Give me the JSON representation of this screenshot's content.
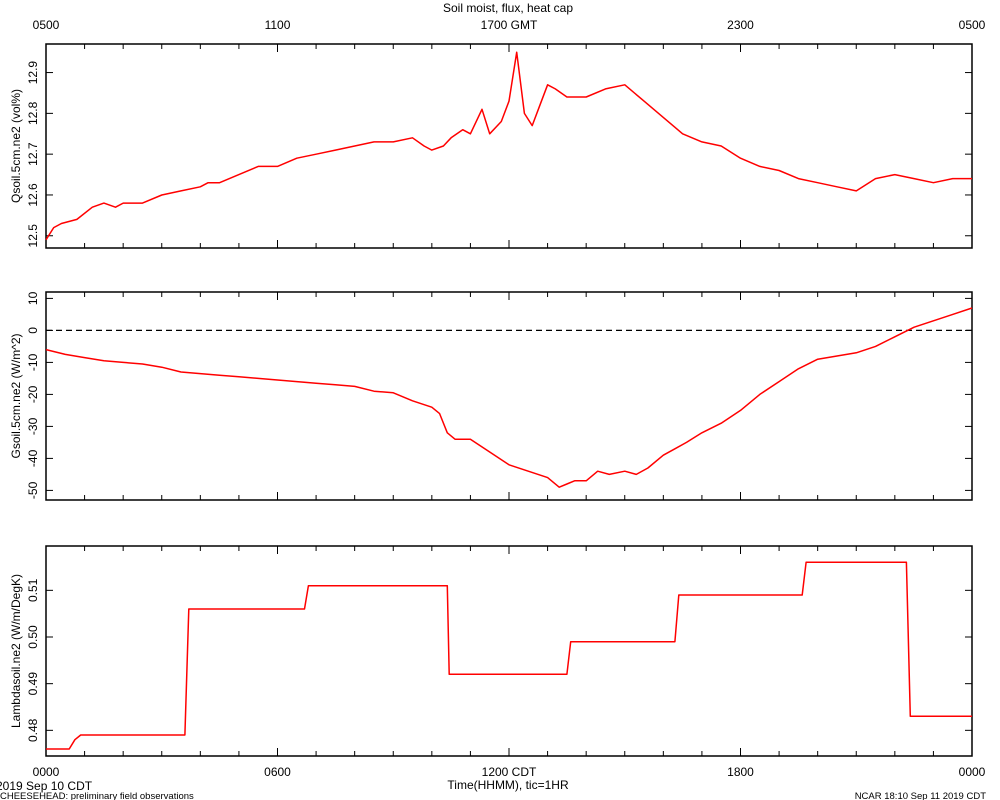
{
  "chart_data": {
    "title": "Soil moist, flux, heat cap",
    "type": "line",
    "top_axis": {
      "ticks": [
        "0500",
        "1100",
        "1700 GMT",
        "2300",
        "0500"
      ]
    },
    "bottom_axis": {
      "ticks": [
        "0000",
        "0600",
        "1200 CDT",
        "1800",
        "0000"
      ],
      "label": "Time(HHMM), tic=1HR",
      "start_date": "2019 Sep 10 CDT",
      "xlim": [
        0,
        24
      ]
    },
    "footer_left": "CHEESEHEAD: preliminary field observations",
    "footer_right": "NCAR 18:10 Sep 11 2019 CDT",
    "line_color": "#ff0000",
    "panels": [
      {
        "ylabel": "Qsoil.5cm.ne2 (vol%)",
        "ylim": [
          12.47,
          12.97
        ],
        "yticks": [
          12.5,
          12.6,
          12.7,
          12.8,
          12.9
        ],
        "yticklabels": [
          "12.5",
          "12.6",
          "12.7",
          "12.8",
          "12.9"
        ],
        "x": [
          0,
          0.2,
          0.4,
          0.8,
          1.2,
          1.5,
          1.8,
          2.0,
          2.5,
          3.0,
          3.5,
          4.0,
          4.2,
          4.5,
          5.0,
          5.5,
          6.0,
          6.5,
          7.0,
          7.5,
          8.0,
          8.5,
          9.0,
          9.5,
          9.8,
          10.0,
          10.3,
          10.5,
          10.8,
          11.0,
          11.3,
          11.5,
          11.8,
          12.0,
          12.2,
          12.4,
          12.6,
          12.8,
          13.0,
          13.2,
          13.5,
          14.0,
          14.5,
          15.0,
          15.5,
          16.0,
          16.5,
          17.0,
          17.5,
          18.0,
          18.5,
          19.0,
          19.5,
          20.0,
          20.5,
          21.0,
          21.5,
          22.0,
          22.5,
          23.0,
          23.5,
          24.0
        ],
        "y": [
          12.49,
          12.52,
          12.53,
          12.54,
          12.57,
          12.58,
          12.57,
          12.58,
          12.58,
          12.6,
          12.61,
          12.62,
          12.63,
          12.63,
          12.65,
          12.67,
          12.67,
          12.69,
          12.7,
          12.71,
          12.72,
          12.73,
          12.73,
          12.74,
          12.72,
          12.71,
          12.72,
          12.74,
          12.76,
          12.75,
          12.81,
          12.75,
          12.78,
          12.83,
          12.95,
          12.8,
          12.77,
          12.82,
          12.87,
          12.86,
          12.84,
          12.84,
          12.86,
          12.87,
          12.83,
          12.79,
          12.75,
          12.73,
          12.72,
          12.69,
          12.67,
          12.66,
          12.64,
          12.63,
          12.62,
          12.61,
          12.64,
          12.65,
          12.64,
          12.63,
          12.64,
          12.64
        ]
      },
      {
        "ylabel": "Gsoil.5cm.ne2 (W/m^2)",
        "ylim": [
          -53,
          12
        ],
        "yticks": [
          10,
          0,
          -10,
          -20,
          -30,
          -40,
          -50
        ],
        "yticklabels": [
          "10",
          "0",
          "-10",
          "-20",
          "-30",
          "-40",
          "-50"
        ],
        "zero_line": true,
        "x": [
          0,
          0.5,
          1.0,
          1.5,
          2.0,
          2.5,
          3.0,
          3.5,
          4.0,
          4.5,
          5.0,
          5.5,
          6.0,
          6.5,
          7.0,
          7.5,
          8.0,
          8.5,
          9.0,
          9.5,
          10.0,
          10.2,
          10.4,
          10.6,
          11.0,
          11.5,
          12.0,
          12.5,
          13.0,
          13.3,
          13.5,
          13.7,
          14.0,
          14.3,
          14.6,
          15.0,
          15.3,
          15.6,
          16.0,
          16.3,
          16.6,
          17.0,
          17.5,
          18.0,
          18.5,
          19.0,
          19.5,
          20.0,
          20.5,
          21.0,
          21.5,
          22.0,
          22.5,
          23.0,
          23.5,
          24.0
        ],
        "y": [
          -6,
          -7.5,
          -8.5,
          -9.5,
          -10,
          -10.5,
          -11.5,
          -13,
          -13.5,
          -14,
          -14.5,
          -15,
          -15.5,
          -16,
          -16.5,
          -17,
          -17.5,
          -19,
          -19.5,
          -22,
          -24,
          -26,
          -32,
          -34,
          -34,
          -38,
          -42,
          -44,
          -46,
          -49,
          -48,
          -47,
          -47,
          -44,
          -45,
          -44,
          -45,
          -43,
          -39,
          -37,
          -35,
          -32,
          -29,
          -25,
          -20,
          -16,
          -12,
          -9,
          -8,
          -7,
          -5,
          -2,
          1,
          3,
          5,
          7
        ]
      },
      {
        "ylabel": "Lambdasoil.ne2 (W/m/DegK)",
        "ylim": [
          0.4745,
          0.5195
        ],
        "yticks": [
          0.48,
          0.49,
          0.5,
          0.51
        ],
        "yticklabels": [
          "0.48",
          "0.49",
          "0.50",
          "0.51"
        ],
        "x": [
          0,
          0.6,
          0.75,
          0.9,
          3.6,
          3.7,
          6.7,
          6.8,
          10.4,
          10.45,
          13.5,
          13.6,
          16.3,
          16.4,
          19.6,
          19.7,
          22.3,
          22.4,
          24.0
        ],
        "y": [
          0.476,
          0.476,
          0.478,
          0.479,
          0.479,
          0.506,
          0.506,
          0.511,
          0.511,
          0.492,
          0.492,
          0.499,
          0.499,
          0.509,
          0.509,
          0.516,
          0.516,
          0.483,
          0.483
        ]
      }
    ]
  }
}
